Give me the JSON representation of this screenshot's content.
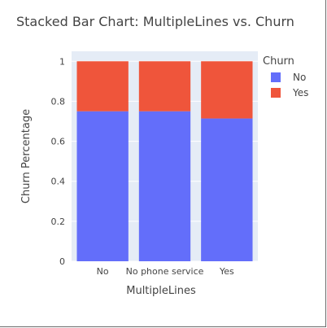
{
  "chart_data": {
    "type": "bar",
    "stacked": true,
    "title": "Stacked Bar Chart: MultipleLines vs. Churn",
    "xlabel": "MultipleLines",
    "ylabel": "Churn Percentage",
    "categories": [
      "No",
      "No phone service",
      "Yes"
    ],
    "series": [
      {
        "name": "No",
        "color": "#636efa",
        "values": [
          0.75,
          0.75,
          0.714
        ]
      },
      {
        "name": "Yes",
        "color": "#ef553b",
        "values": [
          0.25,
          0.25,
          0.286
        ]
      }
    ],
    "ylim": [
      0,
      1.05
    ],
    "yticks": [
      "0",
      "0.2",
      "0.4",
      "0.6",
      "0.8",
      "1"
    ],
    "legend": {
      "title": "Churn",
      "placement": "right"
    },
    "grid": true,
    "plot_background": "#e5ecf6"
  }
}
